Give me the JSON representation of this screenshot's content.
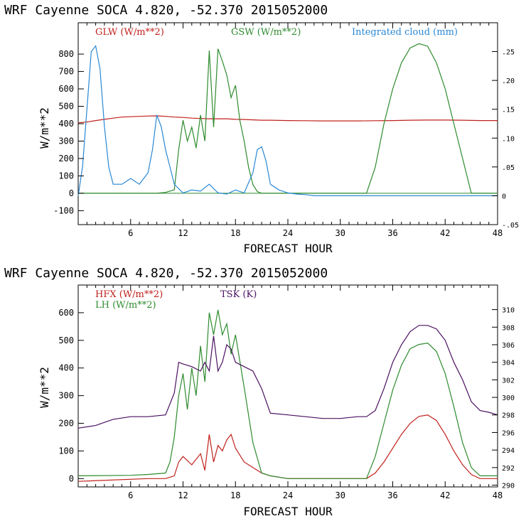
{
  "chart_data": [
    {
      "type": "line",
      "title": "WRF   Cayenne SOCA   4.820, -52.370  2015052000",
      "xlabel": "FORECAST HOUR",
      "ylabel": "W/m**2",
      "xlim": [
        0,
        48
      ],
      "ylim": [
        -180,
        980
      ],
      "y2lim": [
        -0.05,
        0.3
      ],
      "xticks": [
        "6",
        "12",
        "18",
        "24",
        "30",
        "36",
        "42",
        "48"
      ],
      "yticks": [
        "-100",
        "0",
        "100",
        "200",
        "300",
        "400",
        "500",
        "600",
        "700",
        "800"
      ],
      "y2ticks": [
        "-.05",
        "0",
        ".05",
        ".10",
        ".15",
        ".20",
        ".25"
      ],
      "series": [
        {
          "name": "GLW (W/m**2)",
          "color": "#c0211c",
          "axis": "left",
          "x": [
            0,
            1,
            2,
            3,
            4,
            5,
            6,
            7,
            8,
            9,
            10,
            11,
            12,
            13,
            14,
            15,
            16,
            17,
            18,
            19,
            20,
            21,
            22,
            24,
            26,
            28,
            30,
            32,
            34,
            36,
            38,
            40,
            42,
            44,
            46,
            48
          ],
          "y": [
            405,
            410,
            418,
            425,
            432,
            438,
            440,
            442,
            444,
            445,
            442,
            438,
            436,
            432,
            430,
            428,
            428,
            428,
            425,
            424,
            422,
            420,
            420,
            418,
            417,
            416,
            416,
            416,
            417,
            418,
            420,
            421,
            421,
            420,
            418,
            418
          ]
        },
        {
          "name": "GSW (W/m**2)",
          "color": "#2e8b2e",
          "axis": "left",
          "x": [
            0,
            9,
            10,
            11,
            11.5,
            12,
            12.5,
            13,
            13.5,
            14,
            14.5,
            15,
            15.5,
            16,
            16.5,
            17,
            17.5,
            18,
            18.5,
            19,
            19.5,
            20,
            20.5,
            21,
            33,
            34,
            35,
            36,
            37,
            38,
            39,
            40,
            41,
            42,
            43,
            44,
            45,
            48
          ],
          "y": [
            0,
            0,
            5,
            20,
            250,
            420,
            300,
            380,
            260,
            450,
            300,
            820,
            380,
            830,
            760,
            680,
            550,
            620,
            420,
            300,
            150,
            50,
            10,
            0,
            0,
            150,
            400,
            600,
            750,
            835,
            860,
            845,
            750,
            600,
            400,
            200,
            0,
            0
          ]
        },
        {
          "name": "Integrated cloud (mm)",
          "color": "#2a88d4",
          "axis": "right",
          "x": [
            0,
            0.5,
            1,
            1.5,
            2,
            2.5,
            3,
            3.5,
            4,
            5,
            6,
            7,
            8,
            8.5,
            9,
            9.5,
            10,
            10.5,
            11,
            12,
            13,
            14,
            15,
            16,
            17,
            18,
            19,
            20,
            20.5,
            21,
            21.5,
            22,
            23,
            24,
            25,
            26,
            27,
            48
          ],
          "y": [
            0,
            0.05,
            0.15,
            0.25,
            0.26,
            0.22,
            0.12,
            0.05,
            0.02,
            0.02,
            0.03,
            0.02,
            0.04,
            0.08,
            0.14,
            0.12,
            0.08,
            0.05,
            0.02,
            0.005,
            0.01,
            0.008,
            0.02,
            0.005,
            0.003,
            0.01,
            0.005,
            0.04,
            0.08,
            0.085,
            0.06,
            0.02,
            0.01,
            0.005,
            0.003,
            0.002,
            0,
            0
          ]
        }
      ]
    },
    {
      "type": "line",
      "title": "WRF   Cayenne SOCA   4.820, -52.370  2015052000",
      "xlabel": "FORECAST HOUR",
      "ylabel": "W/m**2",
      "xlim": [
        0,
        48
      ],
      "ylim": [
        -30,
        700
      ],
      "y2lim": [
        289.8,
        312.8
      ],
      "xticks": [
        "6",
        "12",
        "18",
        "24",
        "30",
        "36",
        "42",
        "48"
      ],
      "yticks": [
        "0",
        "100",
        "200",
        "300",
        "400",
        "500",
        "600"
      ],
      "y2ticks": [
        "290",
        "292",
        "294",
        "296",
        "298",
        "300",
        "302",
        "304",
        "306",
        "308",
        "310"
      ],
      "series": [
        {
          "name": "HFX (W/m**2)",
          "color": "#c0211c",
          "axis": "left",
          "x": [
            0,
            8,
            10,
            11,
            11.5,
            12,
            13,
            14,
            14.5,
            15,
            15.5,
            16,
            16.5,
            17,
            17.5,
            18,
            19,
            20,
            21,
            22,
            24,
            30,
            33,
            34,
            35,
            36,
            37,
            38,
            39,
            40,
            41,
            42,
            43,
            44,
            45,
            46,
            48
          ],
          "y": [
            -10,
            0,
            0,
            10,
            60,
            80,
            50,
            90,
            30,
            160,
            60,
            120,
            100,
            140,
            160,
            110,
            60,
            40,
            20,
            10,
            0,
            0,
            0,
            20,
            60,
            110,
            160,
            200,
            225,
            230,
            210,
            160,
            100,
            50,
            15,
            0,
            0
          ]
        },
        {
          "name": "LH (W/m**2)",
          "color": "#2e8b2e",
          "axis": "left",
          "x": [
            0,
            6,
            8,
            10,
            10.5,
            11,
            11.5,
            12,
            12.5,
            13,
            13.5,
            14,
            14.5,
            15,
            15.5,
            16,
            16.5,
            17,
            17.5,
            18,
            19,
            20,
            21,
            22,
            24,
            30,
            33,
            34,
            35,
            36,
            37,
            38,
            39,
            40,
            41,
            42,
            43,
            44,
            45,
            46,
            48
          ],
          "y": [
            10,
            12,
            15,
            20,
            60,
            150,
            300,
            380,
            250,
            400,
            300,
            480,
            350,
            600,
            520,
            610,
            520,
            560,
            450,
            520,
            330,
            130,
            20,
            10,
            0,
            0,
            0,
            80,
            200,
            320,
            410,
            470,
            485,
            490,
            460,
            380,
            260,
            130,
            40,
            10,
            10
          ]
        },
        {
          "name": "TSK (K)",
          "color": "#4a1060",
          "axis": "right",
          "x": [
            0,
            2,
            4,
            6,
            8,
            10,
            11,
            11.5,
            12,
            13,
            14,
            14.5,
            15,
            15.5,
            16,
            16.5,
            17,
            17.5,
            18,
            19,
            20,
            21,
            22,
            24,
            26,
            28,
            30,
            32,
            33,
            34,
            35,
            36,
            37,
            38,
            39,
            40,
            41,
            42,
            43,
            44,
            45,
            46,
            47,
            48
          ],
          "y": [
            296.5,
            296.8,
            297.5,
            297.8,
            297.8,
            298,
            300.5,
            304,
            303.8,
            303.5,
            303,
            304,
            303,
            307,
            303,
            304,
            306,
            305.5,
            304,
            303.5,
            303,
            301,
            298.2,
            298,
            297.8,
            297.6,
            297.6,
            297.8,
            297.8,
            298.5,
            301,
            304,
            306,
            307.5,
            308.2,
            308.2,
            307.8,
            306.5,
            304,
            302,
            299.5,
            298.5,
            298.3,
            298
          ]
        }
      ]
    }
  ]
}
